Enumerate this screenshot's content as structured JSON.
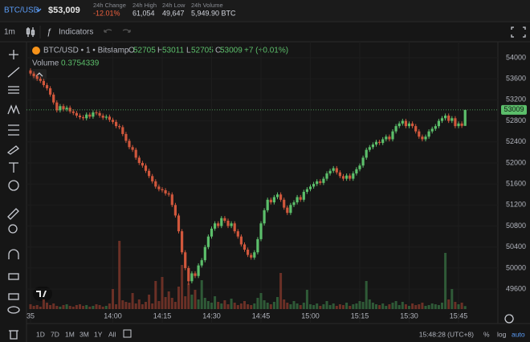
{
  "header": {
    "pair": "BTC/USD",
    "price": "$53,009",
    "stats": [
      {
        "label": "24h Change",
        "value": "-12.01%"
      },
      {
        "label": "24h High",
        "value": "61,054"
      },
      {
        "label": "24h Low",
        "value": "49,647"
      },
      {
        "label": "24h Volume",
        "value": "5,949.90 BTC"
      }
    ]
  },
  "toolbar": {
    "interval": "1m",
    "indicators": "Indicators"
  },
  "footer": {
    "ranges": [
      "1D",
      "7D",
      "1M",
      "3M",
      "1Y",
      "All"
    ],
    "clock": "15:48:28 (UTC+8)",
    "percent": "%",
    "log": "log",
    "auto": "auto"
  },
  "chart_data": {
    "type": "candlestick",
    "title": "BTC/USD • 1 • Bitstamp",
    "change": "+7 (+0.01%)",
    "volume_label": "Volume",
    "ohlc_labels": [
      "O",
      "H",
      "L",
      "C"
    ],
    "up_color": "#5cbf6b",
    "down_color": "#d0573c",
    "up_volume_color": "#2f5a37",
    "down_volume_color": "#6b3026",
    "ylim": [
      49220,
      54305
    ],
    "yticks": [
      54000,
      53600,
      53200,
      52800,
      52400,
      52000,
      51600,
      51200,
      50800,
      50400,
      50000,
      49600
    ],
    "grid": true,
    "xticks": [
      {
        "value": 0,
        "label": "35"
      },
      {
        "value": 25,
        "label": "14:00"
      },
      {
        "value": 40,
        "label": "14:15"
      },
      {
        "value": 55,
        "label": "14:30"
      },
      {
        "value": 70,
        "label": "14:45"
      },
      {
        "value": 85,
        "label": "15:00"
      },
      {
        "value": 100,
        "label": "15:15"
      },
      {
        "value": 115,
        "label": "15:30"
      },
      {
        "value": 130,
        "label": "15:45"
      }
    ],
    "open": [
      53760,
      53700,
      53650,
      53600,
      53560,
      53480,
      53420,
      53300,
      53150,
      53000,
      53080,
      53020,
      53050,
      52980,
      52950,
      52900,
      52870,
      52850,
      52920,
      52880,
      52960,
      52950,
      52900,
      52860,
      52880,
      52820,
      52780,
      52700,
      52680,
      52550,
      52420,
      52300,
      52250,
      52100,
      52000,
      51950,
      51850,
      51750,
      51650,
      51550,
      51500,
      51480,
      51420,
      51400,
      51200,
      51000,
      50700,
      50300,
      50000,
      49750,
      49900,
      49850,
      50050,
      50150,
      50400,
      50600,
      50750,
      50850,
      50800,
      50950,
      50900,
      50800,
      50850,
      50700,
      50600,
      50450,
      50350,
      50250,
      50200,
      50300,
      50550,
      50850,
      51100,
      51300,
      51250,
      51350,
      51400,
      51300,
      51150,
      51050,
      51200,
      51250,
      51350,
      51300,
      51450,
      51500,
      51550,
      51600,
      51650,
      51620,
      51700,
      51800,
      51850,
      51900,
      51820,
      51750,
      51700,
      51760,
      51700,
      51800,
      51880,
      51950,
      52100,
      52250,
      52300,
      52350,
      52400,
      52380,
      52450,
      52500,
      52450,
      52600,
      52700,
      52750,
      52800,
      52700,
      52750,
      52700,
      52600,
      52500,
      52450,
      52500,
      52600,
      52650,
      52700,
      52800,
      52850,
      52900,
      52800,
      52850,
      52700,
      52750,
      52705
    ],
    "high": [
      53800,
      53740,
      53690,
      53640,
      53600,
      53520,
      53460,
      53340,
      53190,
      53120,
      53120,
      53090,
      53090,
      53020,
      52990,
      52940,
      52910,
      52960,
      52960,
      53000,
      53000,
      52990,
      52940,
      52920,
      52920,
      52860,
      52820,
      52740,
      52720,
      52590,
      52460,
      52340,
      52290,
      52140,
      52040,
      51990,
      51890,
      51790,
      51690,
      51590,
      51540,
      51520,
      51460,
      51440,
      51240,
      51040,
      50740,
      50340,
      50040,
      49940,
      49940,
      50090,
      50190,
      50440,
      50640,
      50790,
      50890,
      50890,
      50990,
      50990,
      50940,
      50890,
      50890,
      50740,
      50640,
      50490,
      50390,
      50290,
      50340,
      50590,
      50890,
      51140,
      51340,
      51340,
      51390,
      51440,
      51440,
      51340,
      51190,
      51240,
      51290,
      51390,
      51390,
      51490,
      51540,
      51590,
      51640,
      51690,
      51690,
      51740,
      51840,
      51890,
      51940,
      51940,
      51860,
      51790,
      51800,
      51800,
      51840,
      51920,
      51990,
      52140,
      52290,
      52340,
      52390,
      52440,
      52440,
      52490,
      52540,
      52540,
      52640,
      52740,
      52790,
      52840,
      52840,
      52790,
      52790,
      52740,
      52640,
      52540,
      52540,
      52640,
      52690,
      52740,
      52840,
      52890,
      52940,
      52940,
      52890,
      52890,
      52790,
      52790,
      53011
    ],
    "low": [
      53660,
      53610,
      53560,
      53520,
      53440,
      53380,
      53260,
      53110,
      52960,
      52960,
      52980,
      52980,
      52940,
      52910,
      52860,
      52830,
      52810,
      52810,
      52840,
      52840,
      52910,
      52860,
      52820,
      52820,
      52780,
      52740,
      52660,
      52640,
      52510,
      52380,
      52260,
      52210,
      52060,
      51960,
      51910,
      51810,
      51710,
      51610,
      51510,
      51460,
      51440,
      51380,
      51360,
      51160,
      50960,
      50660,
      50260,
      49960,
      49680,
      49710,
      49810,
      49810,
      50010,
      50110,
      50360,
      50560,
      50710,
      50760,
      50760,
      50860,
      50760,
      50760,
      50660,
      50560,
      50410,
      50310,
      50210,
      50160,
      50160,
      50260,
      50510,
      50810,
      51060,
      51210,
      51210,
      51310,
      51260,
      51110,
      51010,
      51010,
      51160,
      51210,
      51260,
      51260,
      51410,
      51460,
      51510,
      51560,
      51580,
      51580,
      51660,
      51760,
      51810,
      51780,
      51710,
      51660,
      51660,
      51660,
      51660,
      51760,
      51840,
      51910,
      52060,
      52210,
      52260,
      52310,
      52340,
      52340,
      52410,
      52410,
      52410,
      52560,
      52660,
      52710,
      52660,
      52660,
      52660,
      52560,
      52460,
      52410,
      52410,
      52460,
      52560,
      52610,
      52660,
      52760,
      52810,
      52760,
      52760,
      52660,
      52660,
      52665,
      52705
    ],
    "close": [
      53700,
      53650,
      53600,
      53560,
      53480,
      53420,
      53300,
      53150,
      53000,
      53080,
      53020,
      53050,
      52980,
      52950,
      52900,
      52870,
      52850,
      52920,
      52880,
      52960,
      52950,
      52900,
      52860,
      52880,
      52820,
      52780,
      52700,
      52680,
      52550,
      52420,
      52300,
      52250,
      52100,
      52000,
      51950,
      51850,
      51750,
      51650,
      51550,
      51500,
      51480,
      51420,
      51400,
      51200,
      51000,
      50700,
      50300,
      50000,
      49750,
      49900,
      49850,
      50050,
      50150,
      50400,
      50600,
      50750,
      50850,
      50800,
      50950,
      50900,
      50800,
      50850,
      50700,
      50600,
      50450,
      50350,
      50250,
      50200,
      50300,
      50550,
      50850,
      51100,
      51300,
      51250,
      51350,
      51400,
      51300,
      51150,
      51050,
      51200,
      51250,
      51350,
      51300,
      51450,
      51500,
      51550,
      51600,
      51650,
      51620,
      51700,
      51800,
      51850,
      51900,
      51820,
      51750,
      51700,
      51760,
      51700,
      51800,
      51880,
      51950,
      52100,
      52250,
      52300,
      52350,
      52400,
      52380,
      52450,
      52500,
      52450,
      52600,
      52700,
      52750,
      52800,
      52700,
      52750,
      52700,
      52600,
      52500,
      52450,
      52500,
      52600,
      52650,
      52700,
      52800,
      52850,
      52900,
      52800,
      52850,
      52700,
      52750,
      52705,
      53009
    ],
    "volume": [
      0.6,
      0.4,
      0.5,
      0.3,
      1.2,
      0.8,
      0.5,
      0.7,
      0.4,
      0.3,
      0.5,
      0.6,
      0.4,
      0.3,
      0.5,
      0.6,
      0.4,
      0.5,
      0.3,
      0.4,
      0.6,
      0.5,
      0.3,
      0.4,
      0.7,
      2.5,
      0.6,
      8.5,
      1.1,
      0.9,
      0.8,
      2.0,
      0.7,
      1.2,
      0.6,
      0.9,
      1.8,
      0.7,
      3.5,
      1.0,
      4.0,
      1.5,
      2.2,
      1.4,
      0.9,
      2.8,
      5.5,
      1.6,
      3.2,
      1.8,
      2.4,
      1.2,
      3.6,
      1.4,
      1.0,
      0.8,
      1.6,
      0.9,
      0.7,
      1.1,
      0.6,
      1.3,
      0.8,
      0.5,
      0.7,
      1.0,
      0.6,
      0.5,
      0.7,
      1.4,
      2.0,
      1.1,
      0.8,
      0.6,
      0.9,
      1.5,
      4.5,
      1.2,
      0.8,
      0.6,
      1.0,
      0.7,
      0.5,
      0.8,
      2.4,
      0.6,
      0.5,
      0.7,
      0.4,
      0.6,
      1.0,
      0.5,
      0.7,
      0.4,
      0.6,
      0.5,
      0.8,
      0.4,
      0.6,
      0.7,
      1.0,
      0.9,
      3.5,
      1.2,
      0.8,
      0.6,
      0.5,
      0.7,
      0.4,
      0.6,
      0.8,
      1.0,
      0.5,
      0.9,
      0.6,
      0.4,
      0.7,
      0.5,
      0.6,
      0.8,
      0.4,
      0.5,
      0.7,
      0.6,
      0.5,
      0.8,
      7.0,
      1.2,
      2.5,
      0.9,
      0.6,
      0.8,
      0.3754339
    ]
  }
}
